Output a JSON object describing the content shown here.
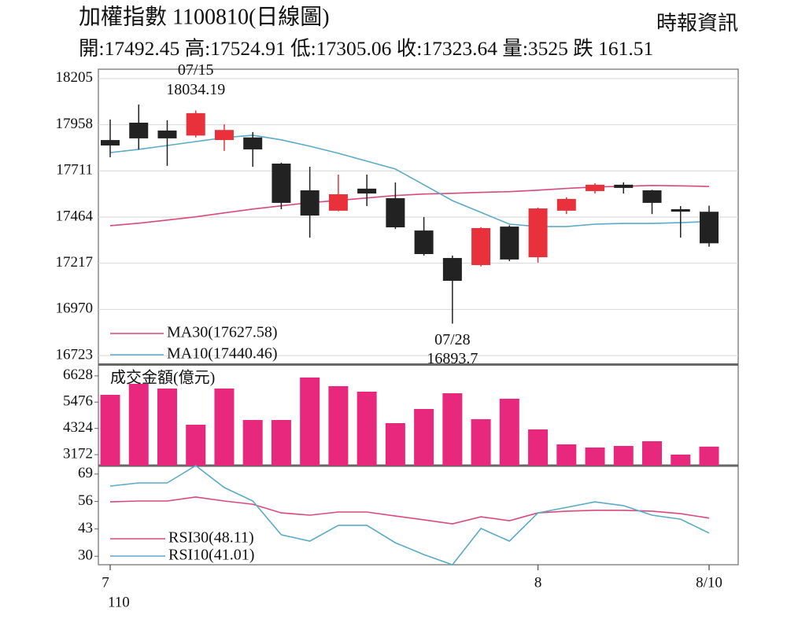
{
  "header": {
    "title": "加權指數 1100810(日線圖)",
    "source": "時報資訊",
    "info": "開:17492.45 高:17524.91 低:17305.06 收:17323.64 量:3525 跌 161.51"
  },
  "chart_data": [
    {
      "type": "candlestick",
      "categories": [
        "7",
        null,
        null,
        null,
        null,
        null,
        null,
        null,
        null,
        null,
        null,
        null,
        null,
        null,
        null,
        "8",
        null,
        null,
        null,
        null,
        null,
        "8/10"
      ],
      "x_axis_note": "110",
      "open": [
        17876,
        17969,
        17927,
        17900,
        17876,
        17890,
        17750,
        17607,
        17498,
        17616,
        17565,
        17392,
        17245,
        17207,
        17413,
        17249,
        17498,
        17603,
        17637,
        17607,
        17506,
        17492.45
      ],
      "high": [
        17986,
        18066,
        17982,
        18034.19,
        17960,
        17919,
        17755,
        17733,
        17691,
        17691,
        17649,
        17464,
        17258,
        17410,
        17420,
        17515,
        17570,
        17645,
        17650,
        17610,
        17523,
        17524.91
      ],
      "low": [
        17784,
        17826,
        17738,
        17890,
        17818,
        17733,
        17506,
        17354,
        17495,
        17523,
        17400,
        17258,
        16893.7,
        17200,
        17228,
        17220,
        17480,
        17590,
        17590,
        17480,
        17354,
        17305.06
      ],
      "close": [
        17847,
        17885,
        17885,
        18020,
        17930,
        17826,
        17540,
        17472,
        17586,
        17590,
        17409,
        17266,
        17123,
        17405,
        17237,
        17510,
        17561,
        17637,
        17620,
        17540,
        17493,
        17323.64
      ],
      "up_color": "#e8313a",
      "down_color": "#222222",
      "lines": [
        {
          "name": "MA30(17627.58)",
          "color": "#d94a7c",
          "values": [
            17418,
            17431,
            17448,
            17465,
            17486,
            17507,
            17524,
            17541,
            17553,
            17566,
            17579,
            17587,
            17591,
            17596,
            17600,
            17608,
            17617,
            17625,
            17629,
            17633,
            17631,
            17627.58
          ]
        },
        {
          "name": "MA10(17440.46)",
          "color": "#5aaac8",
          "values": [
            17809,
            17826,
            17847,
            17868,
            17889,
            17902,
            17877,
            17843,
            17805,
            17763,
            17721,
            17637,
            17552,
            17489,
            17426,
            17413,
            17413,
            17426,
            17430,
            17430,
            17434,
            17440.46
          ]
        }
      ],
      "annotations": [
        {
          "date": "07/15",
          "value": 18034.19
        },
        {
          "date": "07/28",
          "value": 16893.7
        }
      ],
      "ylim": [
        16677,
        18255
      ],
      "yticks": [
        16723,
        16970,
        17217,
        17464,
        17711,
        17958,
        18205
      ],
      "grid": true
    },
    {
      "type": "bar",
      "title": "成交金額(億元)",
      "color": "#e8287c",
      "values": [
        5796,
        6279,
        6072,
        4485,
        6072,
        4692,
        4692,
        6555,
        6176,
        5934,
        4554,
        5175,
        5865,
        4727,
        5624,
        4278,
        3623,
        3485,
        3554,
        3761,
        3174,
        3525
      ],
      "ylim": [
        2691,
        7072
      ],
      "yticks": [
        3172,
        4324,
        5476,
        6628
      ]
    },
    {
      "type": "line",
      "series": [
        {
          "name": "RSI30(48.11)",
          "color": "#d94a7c",
          "values": [
            55.8,
            56.2,
            56.2,
            58.1,
            56.2,
            54.7,
            50.6,
            49.5,
            51.0,
            51.0,
            49.1,
            47.3,
            45.4,
            48.7,
            46.9,
            50.6,
            51.4,
            51.8,
            51.8,
            51.4,
            50.2,
            48.11
          ]
        },
        {
          "name": "RSI10(41.01)",
          "color": "#5aaac8",
          "values": [
            63.3,
            64.8,
            64.8,
            73.0,
            62.6,
            56.2,
            40.2,
            37.2,
            44.7,
            44.7,
            36.4,
            30.8,
            26.0,
            43.2,
            37.2,
            50.6,
            53.2,
            55.8,
            54.0,
            49.5,
            47.6,
            41.01
          ]
        }
      ],
      "ylim": [
        26,
        73
      ],
      "yticks": [
        30,
        43,
        56,
        69
      ]
    }
  ]
}
